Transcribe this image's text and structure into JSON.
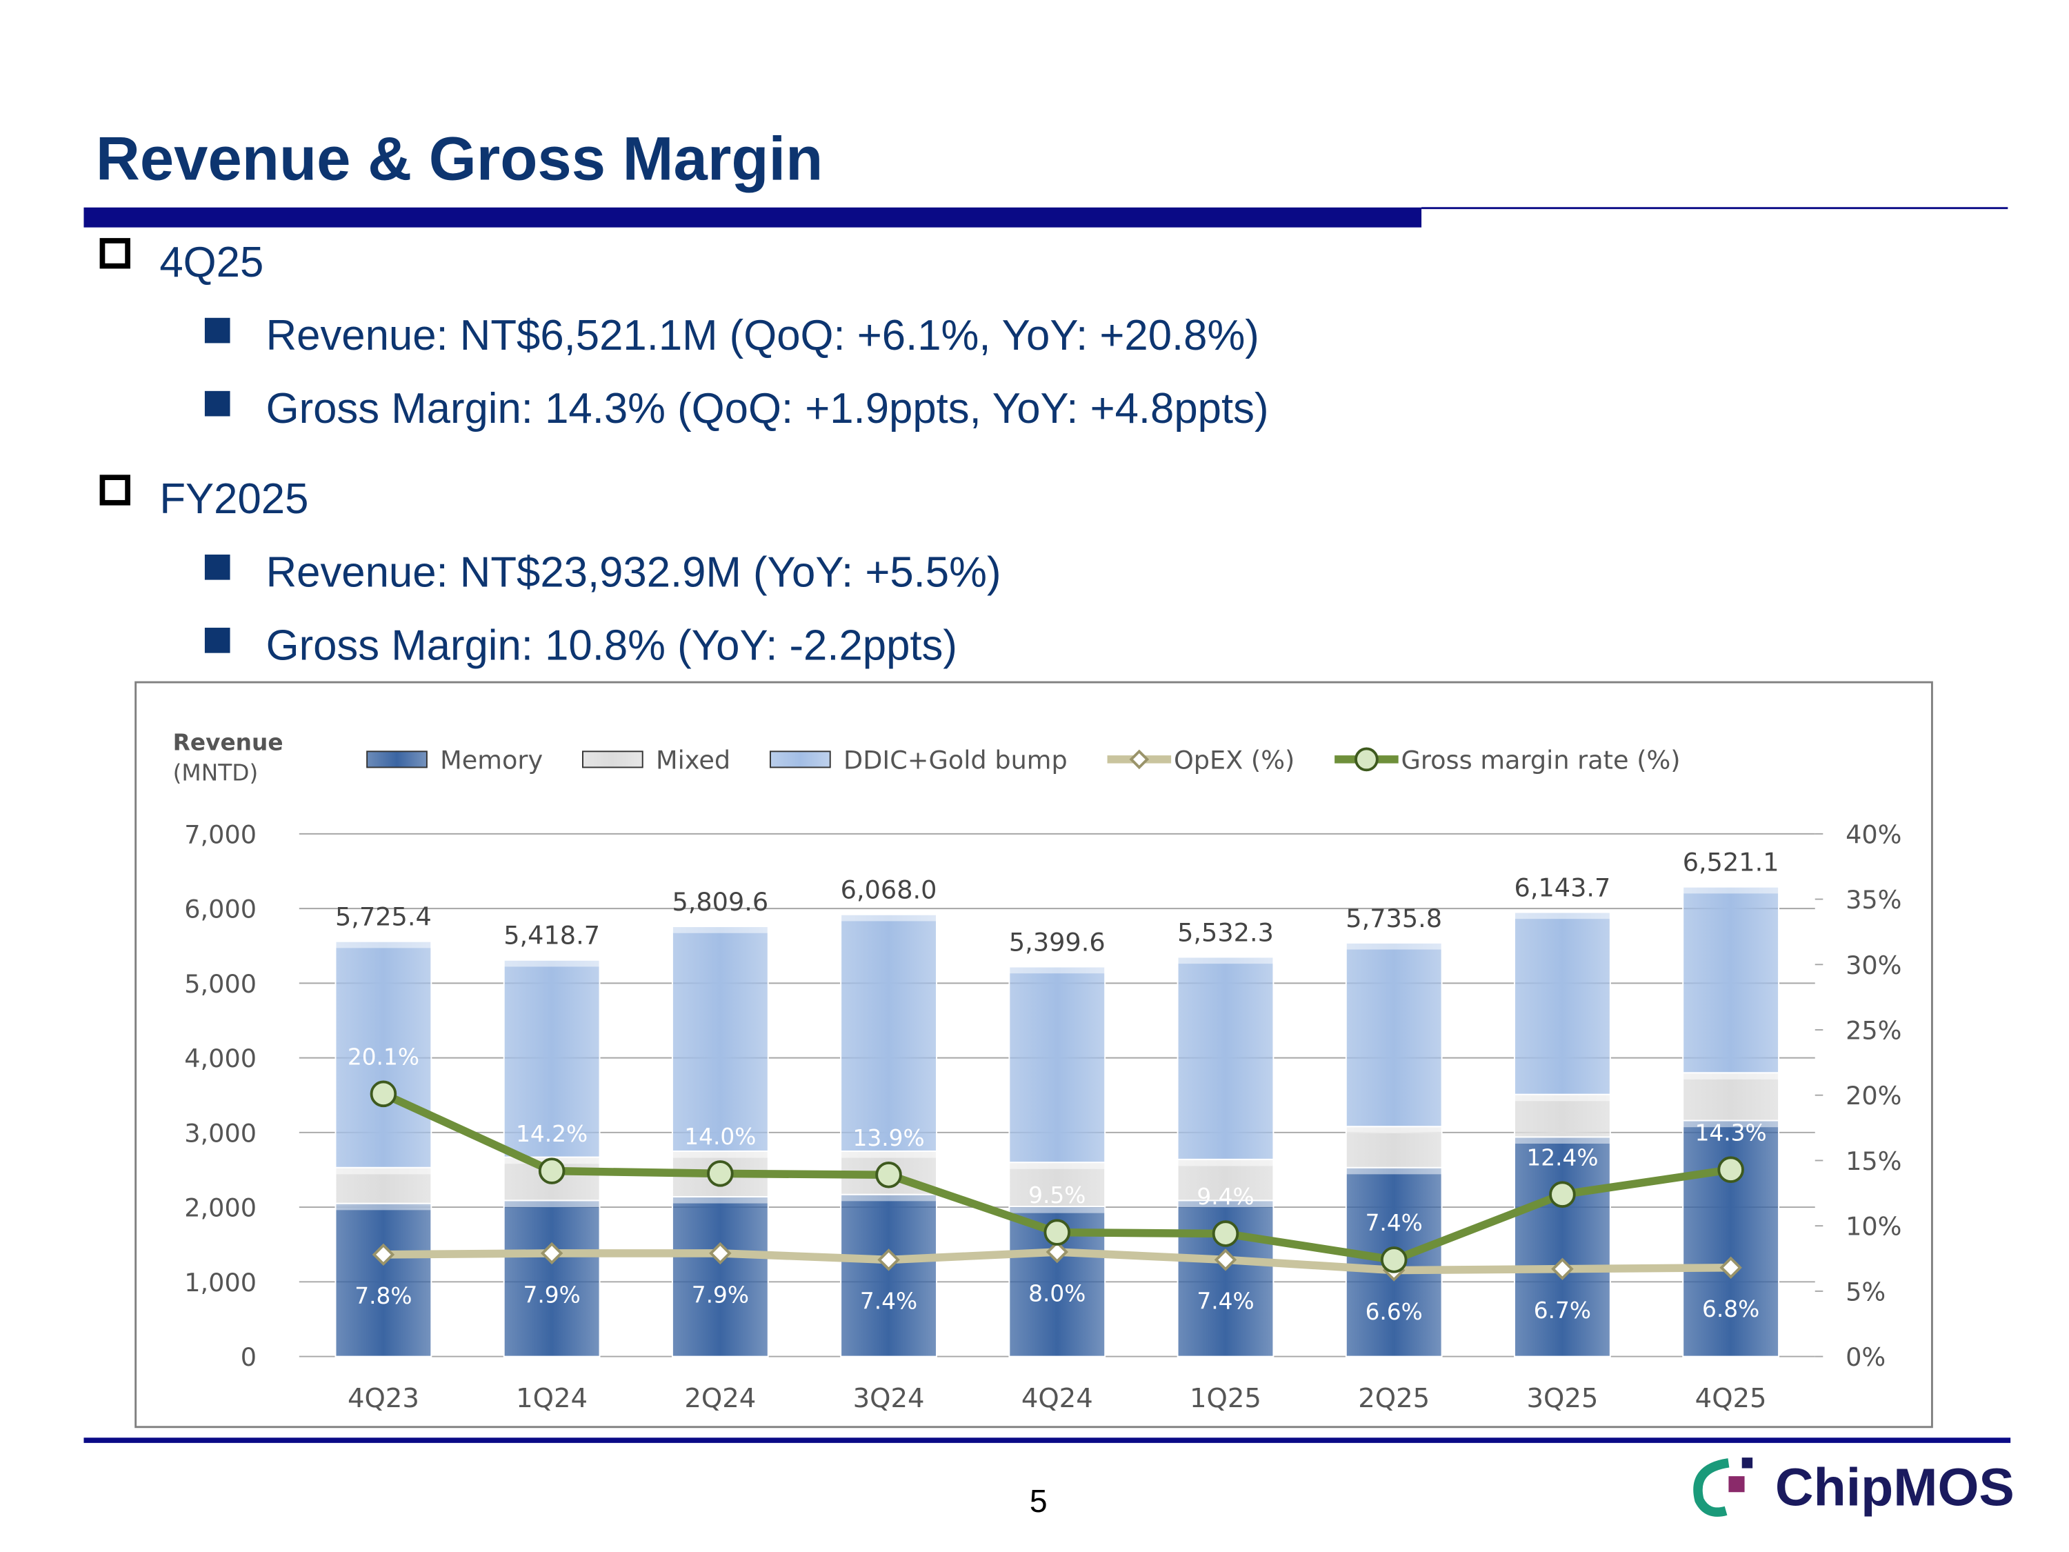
{
  "title": "Revenue & Gross Margin",
  "sections": [
    {
      "heading": "4Q25",
      "items": [
        "Revenue: NT$6,521.1M (QoQ: +6.1%, YoY: +20.8%)",
        "Gross Margin: 14.3% (QoQ: +1.9ppts, YoY: +4.8ppts)"
      ]
    },
    {
      "heading": "FY2025",
      "items": [
        "Revenue: NT$23,932.9M (YoY: +5.5%)",
        "Gross Margin: 10.8% (YoY: -2.2ppts)"
      ]
    }
  ],
  "page_number": "5",
  "logo": "ChipMOS",
  "chart_data": {
    "type": "combo",
    "ylabel": [
      "Revenue",
      "(MNTD)"
    ],
    "categories": [
      "4Q23",
      "1Q24",
      "2Q24",
      "3Q24",
      "4Q24",
      "1Q25",
      "2Q25",
      "3Q25",
      "4Q25"
    ],
    "series": [
      {
        "name": "Memory",
        "type": "bar",
        "color": "#3b65a2",
        "values": [
          2050,
          2090,
          2140,
          2170,
          2010,
          2090,
          2530,
          2940,
          3160
        ]
      },
      {
        "name": "Mixed",
        "type": "bar",
        "color": "#dcdcdc",
        "values": [
          480,
          580,
          610,
          580,
          590,
          550,
          550,
          570,
          640
        ]
      },
      {
        "name": "DDIC+Gold bump",
        "type": "bar",
        "color": "#a3bee5",
        "values": [
          3030,
          2640,
          3010,
          3170,
          2620,
          2710,
          2460,
          2440,
          2490
        ]
      },
      {
        "name": "OpEX (%)",
        "type": "line",
        "axis": "y2",
        "color": "#c9c49e",
        "values": [
          7.8,
          7.9,
          7.9,
          7.4,
          8.0,
          7.4,
          6.6,
          6.7,
          6.8
        ],
        "value_labels": [
          "7.8%",
          "7.9%",
          "7.9%",
          "7.4%",
          "8.0%",
          "7.4%",
          "6.6%",
          "6.7%",
          "6.8%"
        ]
      },
      {
        "name": "Gross margin rate (%)",
        "type": "line",
        "axis": "y2",
        "color": "#6e8f3a",
        "values": [
          20.1,
          14.2,
          14.0,
          13.9,
          9.5,
          9.4,
          7.4,
          12.4,
          14.3
        ],
        "value_labels": [
          "20.1%",
          "14.2%",
          "14.0%",
          "13.9%",
          "9.5%",
          "9.4%",
          "7.4%",
          "12.4%",
          "14.3%"
        ]
      }
    ],
    "total_labels": [
      "5,725.4",
      "5,418.7",
      "5,809.6",
      "6,068.0",
      "5,399.6",
      "5,532.3",
      "5,735.8",
      "6,143.7",
      "6,521.1"
    ],
    "ylim": [
      0,
      7000
    ],
    "yticks": [
      0,
      {
        "value": 1000,
        "label": "1,000"
      },
      {
        "value": 2000,
        "label": "2,000"
      },
      {
        "value": 3000,
        "label": "3,000"
      },
      {
        "value": 4000,
        "label": "4,000"
      },
      {
        "value": 5000,
        "label": "5,000"
      },
      {
        "value": 6000,
        "label": "6,000"
      },
      {
        "value": 7000,
        "label": "7,000"
      }
    ],
    "y2lim": [
      0,
      40
    ],
    "y2ticks": [
      {
        "value": 0,
        "label": "0%"
      },
      {
        "value": 5,
        "label": "5%"
      },
      {
        "value": 10,
        "label": "10%"
      },
      {
        "value": 15,
        "label": "15%"
      },
      {
        "value": 20,
        "label": "20%"
      },
      {
        "value": 25,
        "label": "25%"
      },
      {
        "value": 30,
        "label": "30%"
      },
      {
        "value": 35,
        "label": "35%"
      },
      {
        "value": 40,
        "label": "40%"
      }
    ],
    "grid": true
  }
}
